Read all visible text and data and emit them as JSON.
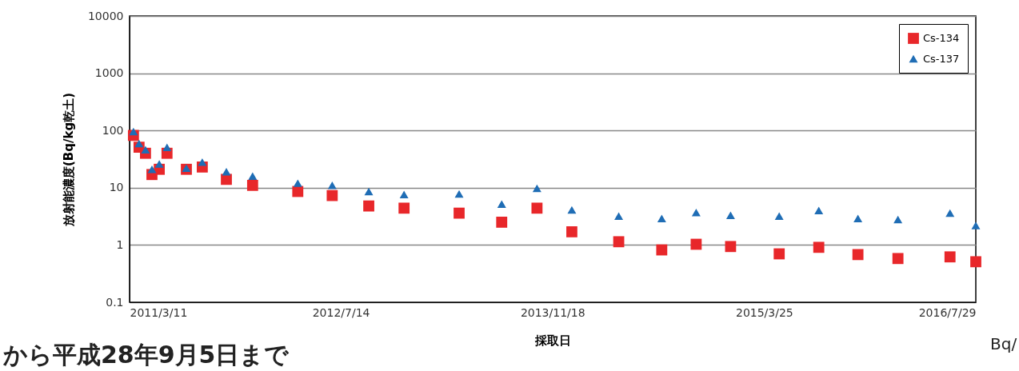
{
  "chart_data": {
    "type": "scatter",
    "xlabel": "採取日",
    "ylabel": "放射能濃度(Bq/kg乾土)",
    "x": [
      "2011-03-20",
      "2011-04-02",
      "2011-04-17",
      "2011-05-02",
      "2011-05-19",
      "2011-06-06",
      "2011-07-21",
      "2011-08-27",
      "2011-10-22",
      "2011-12-22",
      "2012-04-05",
      "2012-06-24",
      "2012-09-17",
      "2012-12-08",
      "2013-04-15",
      "2013-07-23",
      "2013-10-13",
      "2014-01-02",
      "2014-04-21",
      "2014-07-30",
      "2014-10-18",
      "2015-01-06",
      "2015-04-29",
      "2015-07-30",
      "2015-10-29",
      "2016-01-30",
      "2016-05-30",
      "2016-07-29"
    ],
    "series": [
      {
        "name": "Cs-134",
        "color": "#e8272a",
        "marker": "square",
        "values": [
          82,
          51,
          40,
          17,
          21,
          40,
          21,
          23,
          14,
          11,
          8.6,
          7.3,
          4.8,
          4.4,
          3.6,
          2.5,
          4.4,
          1.7,
          1.14,
          0.82,
          1.03,
          0.94,
          0.7,
          0.91,
          0.68,
          0.58,
          0.62,
          0.51
        ]
      },
      {
        "name": "Cs-137",
        "color": "#1f6db5",
        "marker": "triangle",
        "values": [
          96,
          59,
          46,
          21,
          26,
          51,
          22,
          28,
          19,
          16,
          12,
          11,
          8.6,
          7.6,
          7.8,
          5.2,
          9.8,
          4.1,
          3.2,
          2.9,
          3.7,
          3.3,
          3.2,
          4.0,
          2.9,
          2.8,
          3.6,
          2.2
        ]
      }
    ],
    "log": "y",
    "ylim": [
      0.1,
      10000
    ],
    "yticks": [
      0.1,
      1,
      10,
      100,
      1000,
      10000
    ],
    "xlim": [
      "2011-03-11",
      "2016-07-29"
    ],
    "xticks": [
      {
        "value": "2011-03-11",
        "label": "2011/3/11"
      },
      {
        "value": "2012-07-14",
        "label": "2012/7/14"
      },
      {
        "value": "2013-11-18",
        "label": "2013/11/18"
      },
      {
        "value": "2015-03-25",
        "label": "2015/3/25"
      },
      {
        "value": "2016-07-29",
        "label": "2016/7/29"
      }
    ],
    "grid": "y",
    "legend": "top right",
    "annotations": [
      "から平成28年9月5日まで",
      "Bq/"
    ]
  }
}
